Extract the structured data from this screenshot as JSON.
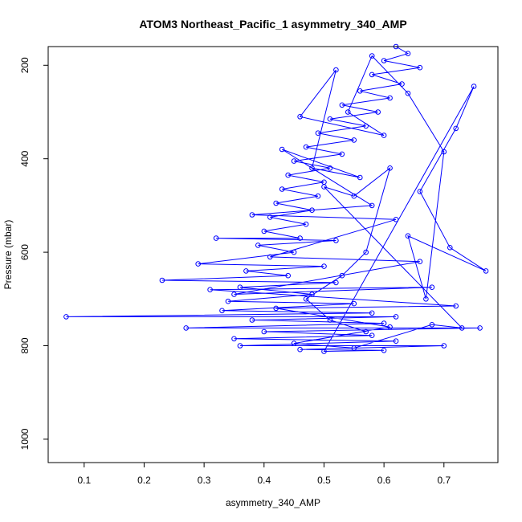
{
  "chart_data": {
    "type": "scatter",
    "title": "ATOM3 Northeast_Pacific_1 asymmetry_340_AMP",
    "xlabel": "asymmetry_340_AMP",
    "ylabel": "Pressure (mbar)",
    "xlim": [
      0.04,
      0.79
    ],
    "ylim": [
      1050,
      160
    ],
    "y_inverted": true,
    "x_ticks": [
      0.1,
      0.2,
      0.3,
      0.4,
      0.5,
      0.6,
      0.7
    ],
    "y_ticks": [
      200,
      400,
      600,
      800,
      1000
    ],
    "x_tick_labels": [
      "0.1",
      "0.2",
      "0.3",
      "0.4",
      "0.5",
      "0.6",
      "0.7"
    ],
    "y_tick_labels": [
      "200",
      "400",
      "600",
      "800",
      "1000"
    ],
    "marker": "open-circle",
    "connected": true,
    "grid": false,
    "legend": "none",
    "series_color": "#0000ff",
    "series": [
      {
        "points": [
          [
            0.62,
            160
          ],
          [
            0.64,
            175
          ],
          [
            0.6,
            190
          ],
          [
            0.66,
            205
          ],
          [
            0.58,
            220
          ],
          [
            0.63,
            240
          ],
          [
            0.56,
            255
          ],
          [
            0.61,
            270
          ],
          [
            0.53,
            285
          ],
          [
            0.59,
            300
          ],
          [
            0.51,
            315
          ],
          [
            0.57,
            330
          ],
          [
            0.49,
            345
          ],
          [
            0.55,
            360
          ],
          [
            0.47,
            375
          ],
          [
            0.53,
            390
          ],
          [
            0.45,
            405
          ],
          [
            0.51,
            420
          ],
          [
            0.44,
            435
          ],
          [
            0.5,
            450
          ],
          [
            0.43,
            465
          ],
          [
            0.49,
            480
          ],
          [
            0.42,
            495
          ],
          [
            0.48,
            510
          ],
          [
            0.41,
            525
          ],
          [
            0.47,
            540
          ],
          [
            0.4,
            555
          ],
          [
            0.46,
            570
          ],
          [
            0.32,
            570
          ],
          [
            0.52,
            575
          ],
          [
            0.39,
            585
          ],
          [
            0.45,
            600
          ],
          [
            0.29,
            625
          ],
          [
            0.5,
            630
          ],
          [
            0.37,
            640
          ],
          [
            0.44,
            650
          ],
          [
            0.23,
            660
          ],
          [
            0.52,
            665
          ],
          [
            0.36,
            675
          ],
          [
            0.48,
            690
          ],
          [
            0.34,
            705
          ],
          [
            0.55,
            710
          ],
          [
            0.33,
            725
          ],
          [
            0.58,
            730
          ],
          [
            0.07,
            738
          ],
          [
            0.62,
            738
          ],
          [
            0.38,
            745
          ],
          [
            0.6,
            752
          ],
          [
            0.27,
            762
          ],
          [
            0.76,
            762
          ],
          [
            0.4,
            770
          ],
          [
            0.58,
            778
          ],
          [
            0.35,
            785
          ],
          [
            0.62,
            790
          ],
          [
            0.36,
            800
          ],
          [
            0.7,
            800
          ],
          [
            0.46,
            808
          ],
          [
            0.6,
            810
          ],
          [
            0.5,
            812
          ],
          [
            0.75,
            245
          ],
          [
            0.72,
            335
          ],
          [
            0.66,
            470
          ],
          [
            0.71,
            590
          ],
          [
            0.77,
            640
          ],
          [
            0.64,
            565
          ],
          [
            0.67,
            700
          ],
          [
            0.7,
            385
          ],
          [
            0.64,
            260
          ],
          [
            0.58,
            180
          ],
          [
            0.54,
            300
          ],
          [
            0.6,
            350
          ],
          [
            0.46,
            310
          ],
          [
            0.52,
            210
          ],
          [
            0.48,
            420
          ],
          [
            0.56,
            440
          ],
          [
            0.43,
            380
          ],
          [
            0.58,
            500
          ],
          [
            0.38,
            520
          ],
          [
            0.62,
            530
          ],
          [
            0.41,
            610
          ],
          [
            0.66,
            620
          ],
          [
            0.35,
            690
          ],
          [
            0.68,
            675
          ],
          [
            0.31,
            680
          ],
          [
            0.72,
            715
          ],
          [
            0.42,
            720
          ],
          [
            0.61,
            760
          ],
          [
            0.45,
            795
          ],
          [
            0.55,
            805
          ],
          [
            0.68,
            755
          ],
          [
            0.73,
            762
          ],
          [
            0.5,
            460
          ],
          [
            0.55,
            480
          ],
          [
            0.61,
            420
          ],
          [
            0.57,
            600
          ],
          [
            0.53,
            650
          ],
          [
            0.47,
            700
          ],
          [
            0.51,
            745
          ],
          [
            0.57,
            770
          ]
        ]
      }
    ]
  }
}
